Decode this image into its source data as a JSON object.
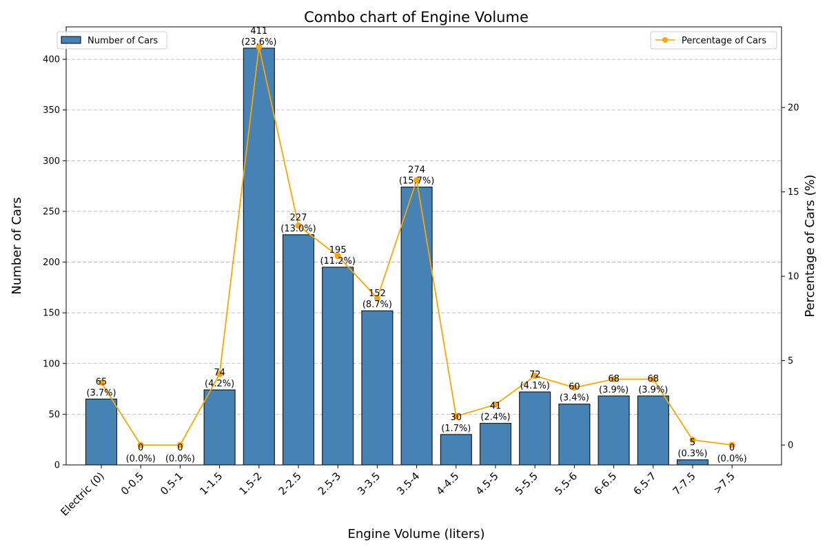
{
  "chart_data": {
    "type": "bar+line",
    "title": "Combo chart of Engine Volume",
    "xlabel": "Engine Volume (liters)",
    "ylabel_left": "Number of Cars",
    "ylabel_right": "Percentage of Cars (%)",
    "categories": [
      "Electric (0)",
      "0-0.5",
      "0.5-1",
      "1-1.5",
      "1.5-2",
      "2-2.5",
      "2.5-3",
      "3-3.5",
      "3.5-4",
      "4-4.5",
      "4.5-5",
      "5-5.5",
      "5.5-6",
      "6-6.5",
      "6.5-7",
      "7-7.5",
      ">7.5"
    ],
    "series": [
      {
        "name": "Number of Cars",
        "type": "bar",
        "axis": "left",
        "color": "#4682b4",
        "values": [
          65,
          0,
          0,
          74,
          411,
          227,
          195,
          152,
          274,
          30,
          41,
          72,
          60,
          68,
          68,
          5,
          0
        ]
      },
      {
        "name": "Percentage of Cars",
        "type": "line",
        "axis": "right",
        "color": "#ffa500",
        "values": [
          3.7,
          0.0,
          0.0,
          4.2,
          23.6,
          13.0,
          11.2,
          8.7,
          15.7,
          1.7,
          2.4,
          4.1,
          3.4,
          3.9,
          3.9,
          0.3,
          0.0
        ]
      }
    ],
    "bar_labels": [
      "65",
      "0",
      "0",
      "74",
      "411",
      "227",
      "195",
      "152",
      "274",
      "30",
      "41",
      "72",
      "60",
      "68",
      "68",
      "5",
      "0"
    ],
    "pct_labels": [
      "(3.7%)",
      "(0.0%)",
      "(0.0%)",
      "(4.2%)",
      "(23.6%)",
      "(13.0%)",
      "(11.2%)",
      "(8.7%)",
      "(15.7%)",
      "(1.7%)",
      "(2.4%)",
      "(4.1%)",
      "(3.4%)",
      "(3.9%)",
      "(3.9%)",
      "(0.3%)",
      "(0.0%)"
    ],
    "ylim_left": [
      0,
      432
    ],
    "yticks_left": [
      "0",
      "50",
      "100",
      "150",
      "200",
      "250",
      "300",
      "350",
      "400"
    ],
    "ylim_right": [
      -1.18,
      24.78
    ],
    "yticks_right": [
      "0",
      "5",
      "10",
      "15",
      "20"
    ],
    "grid": "horizontal dashed",
    "legend_left": "top-left",
    "legend_right": "top-right"
  }
}
